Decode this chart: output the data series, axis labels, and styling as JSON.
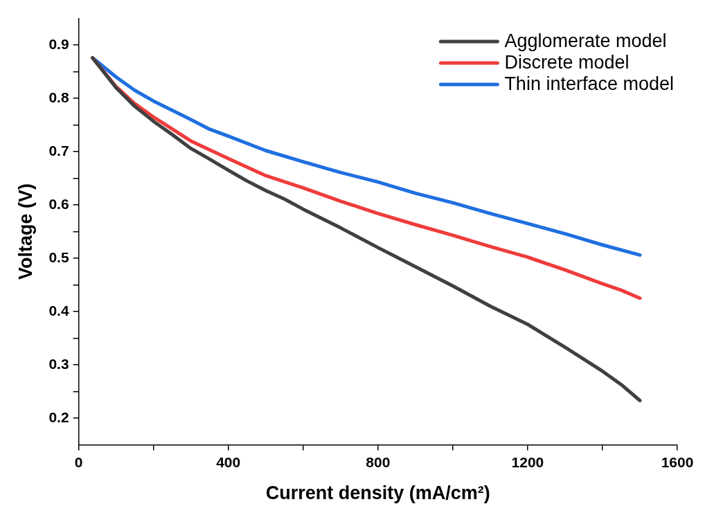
{
  "chart_data": {
    "type": "line",
    "xlabel": "Current density (mA/cm²)",
    "ylabel": "Voltage (V)",
    "xlim": [
      0,
      1600
    ],
    "xticks": [
      0,
      {
        "value": 200,
        "label": null
      },
      400,
      {
        "value": 600,
        "label": null
      },
      800,
      {
        "value": 1000,
        "label": null
      },
      1200,
      {
        "value": 1400,
        "label": null
      },
      1600
    ],
    "ylim": [
      0.15,
      0.95
    ],
    "yticks": [
      {
        "value": 0.2,
        "label": "0.2"
      },
      {
        "value": 0.25,
        "label": null
      },
      {
        "value": 0.3,
        "label": "0.3"
      },
      {
        "value": 0.35,
        "label": null
      },
      {
        "value": 0.4,
        "label": "0.4"
      },
      {
        "value": 0.45,
        "label": null
      },
      {
        "value": 0.5,
        "label": "0.5"
      },
      {
        "value": 0.55,
        "label": null
      },
      {
        "value": 0.6,
        "label": "0.6"
      },
      {
        "value": 0.65,
        "label": null
      },
      {
        "value": 0.7,
        "label": "0.7"
      },
      {
        "value": 0.75,
        "label": null
      },
      {
        "value": 0.8,
        "label": "0.8"
      },
      {
        "value": 0.85,
        "label": null
      },
      {
        "value": 0.9,
        "label": "0.9"
      }
    ],
    "grid": false,
    "legend": "top right",
    "marker": "none",
    "line_style": "solid",
    "series": [
      {
        "name": "Agglomerate model",
        "color": "#404040",
        "x": [
          37,
          100,
          150,
          200,
          250,
          300,
          350,
          400,
          450,
          500,
          550,
          600,
          700,
          800,
          900,
          1000,
          1100,
          1200,
          1300,
          1400,
          1450,
          1500
        ],
        "values": [
          0.876,
          0.82,
          0.785,
          0.757,
          0.732,
          0.706,
          0.686,
          0.665,
          0.645,
          0.627,
          0.611,
          0.592,
          0.557,
          0.52,
          0.484,
          0.448,
          0.41,
          0.376,
          0.333,
          0.288,
          0.263,
          0.233
        ]
      },
      {
        "name": "Discrete model",
        "color": "#ef3b3b",
        "x": [
          37,
          100,
          150,
          200,
          300,
          400,
          500,
          600,
          700,
          800,
          900,
          1000,
          1100,
          1200,
          1300,
          1400,
          1450,
          1500
        ],
        "values": [
          0.876,
          0.822,
          0.79,
          0.765,
          0.72,
          0.687,
          0.655,
          0.632,
          0.607,
          0.584,
          0.563,
          0.543,
          0.522,
          0.502,
          0.478,
          0.452,
          0.44,
          0.425
        ]
      },
      {
        "name": "Thin interface model",
        "color": "#1f6fe0",
        "x": [
          37,
          100,
          150,
          200,
          300,
          350,
          400,
          500,
          600,
          700,
          800,
          900,
          1000,
          1100,
          1200,
          1300,
          1400,
          1500
        ],
        "values": [
          0.876,
          0.84,
          0.815,
          0.795,
          0.76,
          0.742,
          0.729,
          0.702,
          0.681,
          0.661,
          0.643,
          0.622,
          0.604,
          0.584,
          0.565,
          0.546,
          0.525,
          0.506
        ]
      }
    ]
  }
}
